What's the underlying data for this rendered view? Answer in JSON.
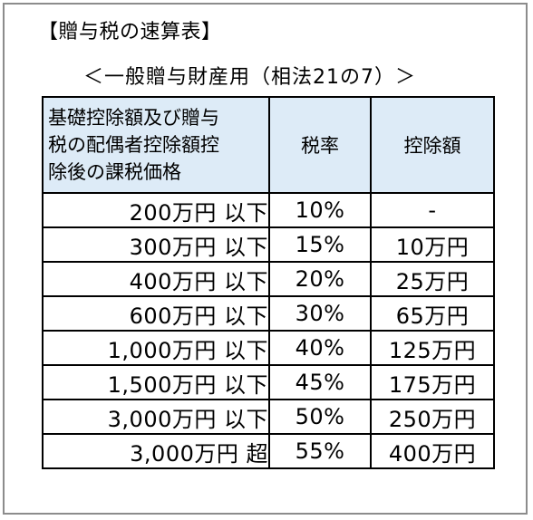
{
  "title": "【贈与税の速算表】",
  "subtitle": "＜一般贈与財産用（相法21の7）＞",
  "table": {
    "headers": {
      "amount_lines": [
        "基礎控除額及び贈与",
        "税の配偶者控除額控",
        "除後の課税価格"
      ],
      "rate": "税率",
      "deduction": "控除額"
    },
    "rows": [
      {
        "amount": "200万円 以下",
        "rate": "10%",
        "deduction": "-"
      },
      {
        "amount": "300万円 以下",
        "rate": "15%",
        "deduction": "10万円"
      },
      {
        "amount": "400万円 以下",
        "rate": "20%",
        "deduction": "25万円"
      },
      {
        "amount": "600万円 以下",
        "rate": "30%",
        "deduction": "65万円"
      },
      {
        "amount": "1,000万円 以下",
        "rate": "40%",
        "deduction": "125万円"
      },
      {
        "amount": "1,500万円 以下",
        "rate": "45%",
        "deduction": "175万円"
      },
      {
        "amount": "3,000万円 以下",
        "rate": "50%",
        "deduction": "250万円"
      },
      {
        "amount": "3,000万円 超",
        "rate": "55%",
        "deduction": "400万円"
      }
    ]
  },
  "colors": {
    "header_background": "#ddebf7",
    "frame_border": "#8c8c8c",
    "grid_line": "#000000"
  }
}
